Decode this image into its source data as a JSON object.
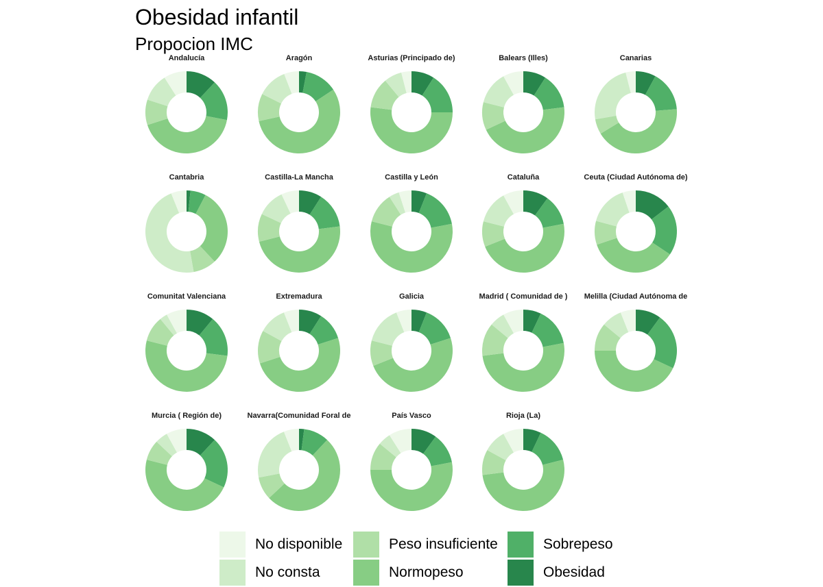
{
  "title": "Obesidad infantil",
  "subtitle": "Propocion IMC",
  "colors": {
    "No disponible": "#edf8e9",
    "No consta": "#ceecc8",
    "Peso insuficiente": "#b0dfa7",
    "Normopeso": "#87cd84",
    "Sobrepeso": "#50b068",
    "Obesidad": "#28864c"
  },
  "legend": [
    {
      "label": "No disponible",
      "key": "No disponible"
    },
    {
      "label": "No consta",
      "key": "No consta"
    },
    {
      "label": "Peso insuficiente",
      "key": "Peso insuficiente"
    },
    {
      "label": "Normopeso",
      "key": "Normopeso"
    },
    {
      "label": "Sobrepeso",
      "key": "Sobrepeso"
    },
    {
      "label": "Obesidad",
      "key": "Obesidad"
    }
  ],
  "chart_data": {
    "type": "pie",
    "variant": "donut",
    "categories": [
      "Obesidad",
      "Sobrepeso",
      "Normopeso",
      "Peso insuficiente",
      "No consta",
      "No disponible"
    ],
    "unit": "proportion",
    "panels": [
      {
        "region": "Andalucía",
        "values": [
          0.12,
          0.16,
          0.42,
          0.1,
          0.11,
          0.09
        ]
      },
      {
        "region": "Aragón",
        "values": [
          0.03,
          0.13,
          0.57,
          0.11,
          0.12,
          0.06
        ]
      },
      {
        "region": "Asturias (Principado de)",
        "values": [
          0.09,
          0.16,
          0.52,
          0.12,
          0.07,
          0.04
        ]
      },
      {
        "region": "Balears (Illes)",
        "values": [
          0.09,
          0.14,
          0.45,
          0.11,
          0.13,
          0.08
        ]
      },
      {
        "region": "Canarias",
        "values": [
          0.08,
          0.16,
          0.43,
          0.06,
          0.24,
          0.04
        ]
      },
      {
        "region": "Cantabria",
        "values": [
          0.015,
          0.06,
          0.3,
          0.09,
          0.46,
          0.06
        ]
      },
      {
        "region": "Castilla-La Mancha",
        "values": [
          0.09,
          0.14,
          0.48,
          0.11,
          0.11,
          0.07
        ]
      },
      {
        "region": "Castilla y León",
        "values": [
          0.06,
          0.16,
          0.57,
          0.12,
          0.04,
          0.05
        ]
      },
      {
        "region": "Cataluña",
        "values": [
          0.1,
          0.12,
          0.47,
          0.1,
          0.13,
          0.08
        ]
      },
      {
        "region": "Ceuta (Ciudad Autónoma de)",
        "values": [
          0.14,
          0.19,
          0.34,
          0.09,
          0.15,
          0.05
        ]
      },
      {
        "region": "Comunitat Valenciana",
        "values": [
          0.11,
          0.16,
          0.52,
          0.1,
          0.03,
          0.08
        ]
      },
      {
        "region": "Extremadura",
        "values": [
          0.09,
          0.11,
          0.5,
          0.13,
          0.11,
          0.06
        ]
      },
      {
        "region": "Galicia",
        "values": [
          0.06,
          0.14,
          0.49,
          0.1,
          0.15,
          0.06
        ]
      },
      {
        "region": "Madrid ( Comunidad de )",
        "values": [
          0.07,
          0.15,
          0.51,
          0.13,
          0.06,
          0.08
        ]
      },
      {
        "region": "Melilla (Ciudad Autónoma de",
        "values": [
          0.1,
          0.22,
          0.43,
          0.11,
          0.08,
          0.06
        ]
      },
      {
        "region": "Murcia ( Región de)",
        "values": [
          0.12,
          0.2,
          0.47,
          0.08,
          0.05,
          0.08
        ]
      },
      {
        "region": "Navarra(Comunidad Foral de",
        "values": [
          0.02,
          0.1,
          0.51,
          0.09,
          0.22,
          0.06
        ]
      },
      {
        "region": "País Vasco",
        "values": [
          0.1,
          0.12,
          0.53,
          0.11,
          0.05,
          0.09
        ]
      },
      {
        "region": "Rioja (La)",
        "values": [
          0.07,
          0.14,
          0.52,
          0.1,
          0.09,
          0.08
        ]
      }
    ]
  }
}
